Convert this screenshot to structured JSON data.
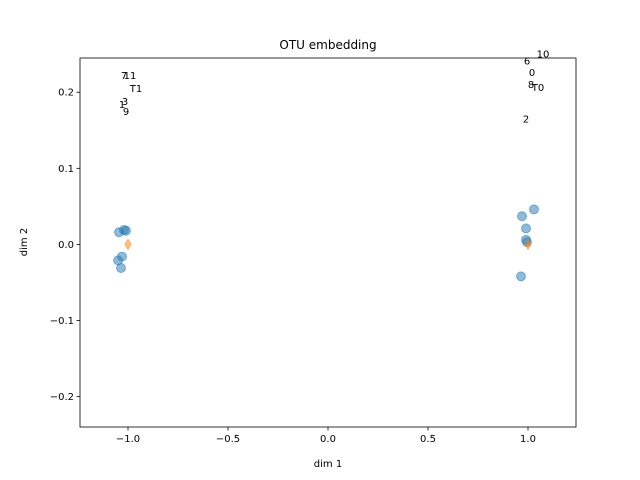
{
  "chart_data": {
    "type": "scatter",
    "title": "OTU embedding",
    "xlabel": "dim 1",
    "ylabel": "dim 2",
    "xlim": [
      -1.24,
      1.24
    ],
    "ylim": [
      -0.24,
      0.245
    ],
    "xticks": [
      -1.0,
      -0.5,
      0.0,
      0.5,
      1.0
    ],
    "xtick_labels": [
      "−1.0",
      "−0.5",
      "0.0",
      "0.5",
      "1.0"
    ],
    "yticks": [
      -0.2,
      -0.1,
      0.0,
      0.1,
      0.2
    ],
    "ytick_labels": [
      "−0.2",
      "−0.1",
      "0.0",
      "0.1",
      "0.2"
    ],
    "grid": false,
    "series": [
      {
        "marker": "circle",
        "color": "#1f77b4",
        "points": [
          {
            "x": -1.045,
            "y": 0.016
          },
          {
            "x": -1.02,
            "y": 0.019
          },
          {
            "x": -1.01,
            "y": 0.018
          },
          {
            "x": -1.05,
            "y": -0.021
          },
          {
            "x": -1.03,
            "y": -0.016
          },
          {
            "x": -1.035,
            "y": -0.031
          },
          {
            "x": 0.97,
            "y": 0.037
          },
          {
            "x": 1.03,
            "y": 0.046
          },
          {
            "x": 0.99,
            "y": 0.021
          },
          {
            "x": 0.99,
            "y": 0.006
          },
          {
            "x": 0.995,
            "y": 0.003
          },
          {
            "x": 0.965,
            "y": -0.042
          }
        ]
      },
      {
        "marker": "diamond",
        "color": "#ff7f0e",
        "points": [
          {
            "x": -1.0,
            "y": 0.0
          },
          {
            "x": 1.0,
            "y": 0.0
          }
        ]
      }
    ],
    "annotations": [
      {
        "text": "7",
        "x": -1.02,
        "y": 0.222
      },
      {
        "text": "11",
        "x": -0.99,
        "y": 0.222
      },
      {
        "text": "T1",
        "x": -0.96,
        "y": 0.205
      },
      {
        "text": "3",
        "x": -1.015,
        "y": 0.188
      },
      {
        "text": "1",
        "x": -1.03,
        "y": 0.184
      },
      {
        "text": "9",
        "x": -1.01,
        "y": 0.175
      },
      {
        "text": "6",
        "x": 0.995,
        "y": 0.241
      },
      {
        "text": "10",
        "x": 1.075,
        "y": 0.25
      },
      {
        "text": "0",
        "x": 1.02,
        "y": 0.226
      },
      {
        "text": "8",
        "x": 1.015,
        "y": 0.21
      },
      {
        "text": "T0",
        "x": 1.05,
        "y": 0.206
      },
      {
        "text": "2",
        "x": 0.99,
        "y": 0.165
      }
    ]
  }
}
